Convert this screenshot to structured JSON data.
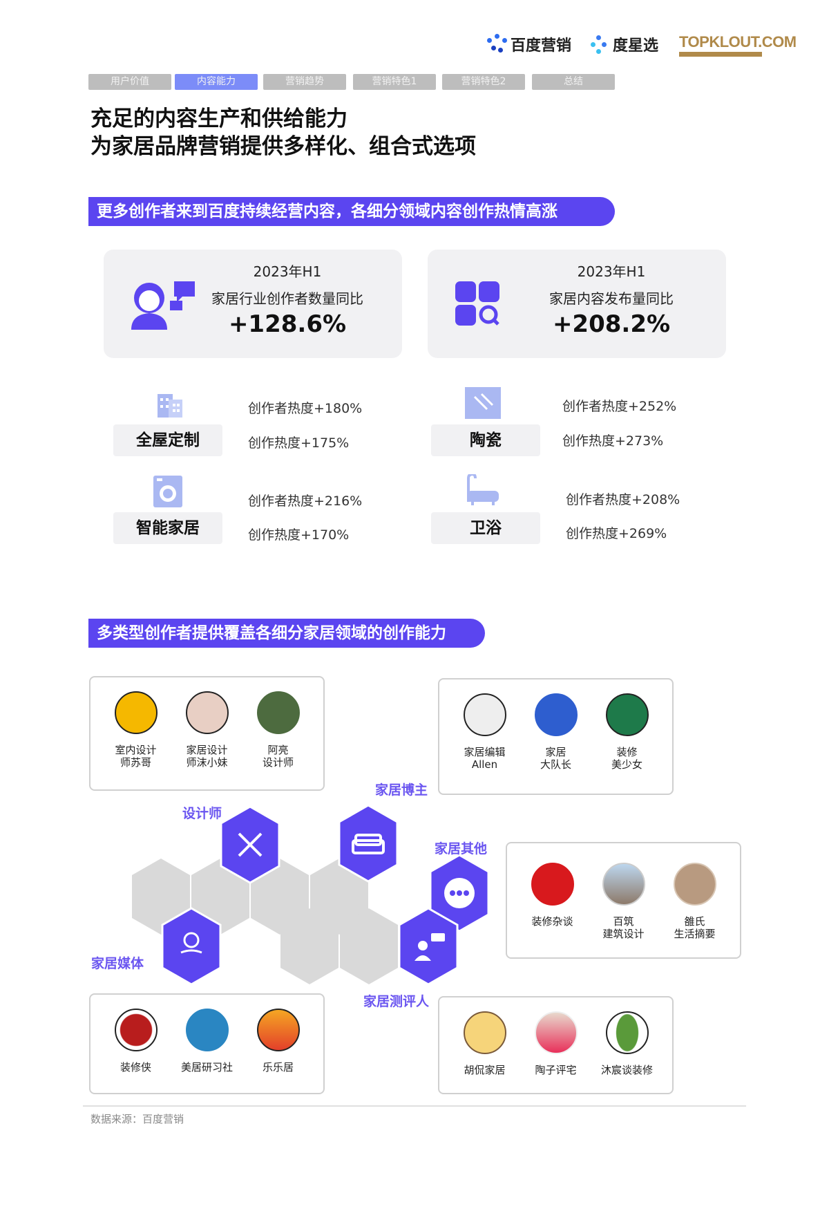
{
  "header": {
    "logos": [
      "百度营销",
      "度星选",
      "TOPKLOUT.COM"
    ],
    "tabs": [
      {
        "label": "用户价值",
        "active": false
      },
      {
        "label": "内容能力",
        "active": true
      },
      {
        "label": "营销趋势",
        "active": false
      },
      {
        "label": "营销特色1",
        "active": false
      },
      {
        "label": "营销特色2",
        "active": false
      },
      {
        "label": "总结",
        "active": false
      }
    ],
    "title_line1": "充足的内容生产和供给能力",
    "title_line2": "为家居品牌营销提供多样化、组合式选项"
  },
  "section1": {
    "banner": "更多创作者来到百度持续经营内容，各细分领域内容创作热情高涨",
    "cards": [
      {
        "period": "2023年H1",
        "label": "家居行业创作者数量同比",
        "value": "+128.6%",
        "icon": "creator-icon"
      },
      {
        "period": "2023年H1",
        "label": "家居内容发布量同比",
        "value": "+208.2%",
        "icon": "apps-search-icon"
      }
    ],
    "categories": [
      {
        "name": "全屋定制",
        "icon": "building-icon",
        "stat1": "创作者热度+180%",
        "stat2": "创作热度+175%"
      },
      {
        "name": "陶瓷",
        "icon": "tile-icon",
        "stat1": "创作者热度+252%",
        "stat2": "创作热度+273%"
      },
      {
        "name": "智能家居",
        "icon": "washer-icon",
        "stat1": "创作者热度+216%",
        "stat2": "创作热度+170%"
      },
      {
        "name": "卫浴",
        "icon": "bathtub-icon",
        "stat1": "创作者热度+208%",
        "stat2": "创作热度+269%"
      }
    ]
  },
  "section2": {
    "banner": "多类型创作者提供覆盖各细分家居领域的创作能力",
    "groups": {
      "designer": {
        "label": "设计师",
        "people": [
          "室内设计\n师苏哥",
          "家居设计\n师沫小妹",
          "阿亮\n设计师"
        ]
      },
      "blogger": {
        "label": "家居博主",
        "people": [
          "家居编辑\nAllen",
          "家居\n大队长",
          "装修\n美少女"
        ]
      },
      "other": {
        "label": "家居其他",
        "people": [
          "装修杂谈",
          "百筑\n建筑设计",
          "雒氏\n生活摘要"
        ]
      },
      "media": {
        "label": "家居媒体",
        "people": [
          "装修侠",
          "美居研习社",
          "乐乐居"
        ]
      },
      "reviewer": {
        "label": "家居测评人",
        "people": [
          "胡侃家居",
          "陶子评宅",
          "沐宸谈装修"
        ]
      }
    }
  },
  "footer": {
    "source": "数据来源：百度营销"
  },
  "colors": {
    "accent": "#5b45f0",
    "tab_active": "#7c8cf8",
    "tab_inactive": "#bdbdbd",
    "card_bg": "#f1f1f3",
    "hex_gray": "#d9d9d9",
    "topklout": "#b08a4a"
  }
}
